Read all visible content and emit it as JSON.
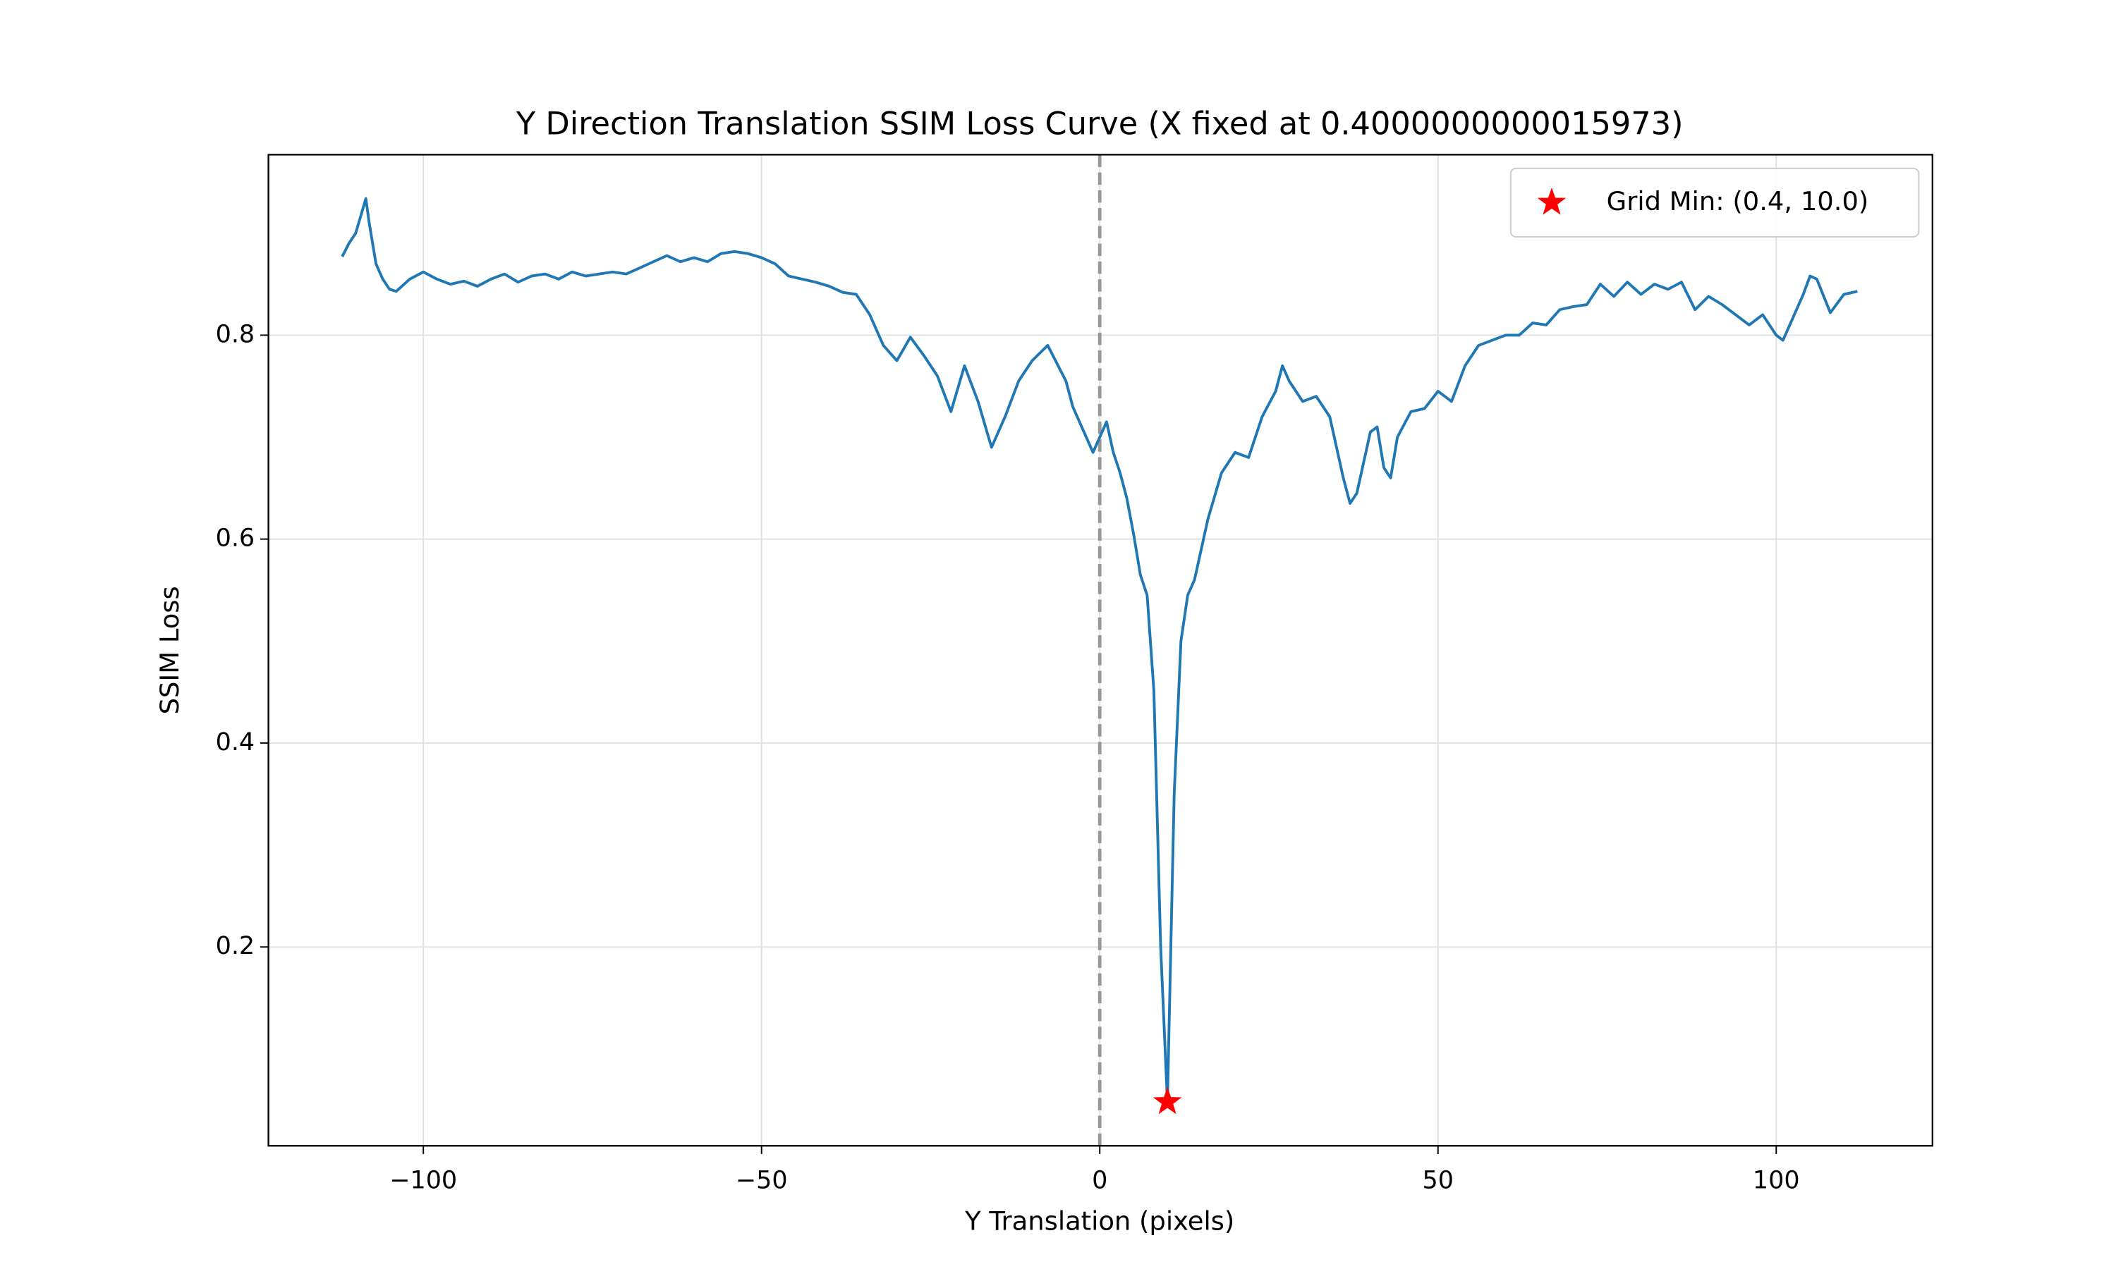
{
  "chart_data": {
    "type": "line",
    "title": "Y Direction Translation SSIM Loss Curve (X fixed at 0.4000000000015973)",
    "xlabel": "Y Translation (pixels)",
    "ylabel": "SSIM Loss",
    "xlim": [
      -122.9,
      123.1
    ],
    "ylim": [
      0.005,
      0.977
    ],
    "xticks": [
      {
        "value": -100,
        "label": "−100"
      },
      {
        "value": -50,
        "label": "−50"
      },
      0,
      50,
      100
    ],
    "yticks": [
      0.2,
      0.4,
      0.6,
      0.8
    ],
    "grid": true,
    "vline_x": 0,
    "vline_color": "#999999",
    "legend_position": "upper-right",
    "series": [
      {
        "color": "#1f77b4",
        "x": [
          -112,
          -111,
          -110,
          -108.5,
          -108,
          -107,
          -106,
          -105,
          -104,
          -102,
          -100,
          -98,
          -96,
          -94,
          -92,
          -90,
          -88,
          -86,
          -84,
          -82,
          -80,
          -78,
          -76,
          -74,
          -72,
          -70,
          -68,
          -66,
          -64,
          -62,
          -60,
          -58,
          -56,
          -54,
          -52,
          -50,
          -48,
          -46,
          -44,
          -42,
          -40,
          -38,
          -36,
          -34,
          -32,
          -30,
          -28,
          -26,
          -24,
          -22,
          -20,
          -18,
          -16,
          -14,
          -12,
          -10,
          -7.7,
          -5,
          -4,
          -2,
          -1,
          0,
          1,
          2,
          3,
          4,
          5,
          6,
          7,
          8,
          9,
          10,
          11,
          12,
          13,
          14,
          16,
          18,
          20,
          22,
          24,
          26,
          27,
          28,
          30,
          32,
          34,
          36,
          37,
          38,
          40,
          41,
          42,
          43,
          44,
          46,
          48,
          50,
          52,
          54,
          56,
          58,
          60,
          62,
          64,
          66,
          68,
          70,
          72,
          74,
          76,
          78,
          80,
          82,
          84,
          86,
          88,
          90,
          92,
          94,
          96,
          98,
          100,
          101,
          102,
          104,
          105,
          106,
          108,
          110,
          112
        ],
        "values": [
          0.877,
          0.89,
          0.9,
          0.934,
          0.91,
          0.87,
          0.855,
          0.845,
          0.843,
          0.855,
          0.862,
          0.855,
          0.85,
          0.853,
          0.848,
          0.855,
          0.86,
          0.852,
          0.858,
          0.86,
          0.855,
          0.862,
          0.858,
          0.86,
          0.862,
          0.86,
          0.866,
          0.872,
          0.878,
          0.872,
          0.876,
          0.872,
          0.88,
          0.882,
          0.88,
          0.876,
          0.87,
          0.858,
          0.855,
          0.852,
          0.848,
          0.842,
          0.84,
          0.82,
          0.79,
          0.775,
          0.798,
          0.78,
          0.76,
          0.725,
          0.77,
          0.735,
          0.69,
          0.72,
          0.755,
          0.775,
          0.79,
          0.755,
          0.73,
          0.7,
          0.685,
          0.7,
          0.715,
          0.685,
          0.665,
          0.64,
          0.605,
          0.565,
          0.545,
          0.451,
          0.2,
          0.048,
          0.35,
          0.5,
          0.545,
          0.56,
          0.62,
          0.665,
          0.685,
          0.68,
          0.72,
          0.745,
          0.77,
          0.755,
          0.735,
          0.74,
          0.72,
          0.66,
          0.635,
          0.645,
          0.705,
          0.71,
          0.67,
          0.66,
          0.7,
          0.725,
          0.728,
          0.745,
          0.735,
          0.77,
          0.79,
          0.795,
          0.8,
          0.8,
          0.812,
          0.81,
          0.825,
          0.828,
          0.83,
          0.85,
          0.838,
          0.852,
          0.84,
          0.85,
          0.845,
          0.852,
          0.825,
          0.838,
          0.83,
          0.82,
          0.81,
          0.82,
          0.8,
          0.795,
          0.81,
          0.84,
          0.858,
          0.855,
          0.822,
          0.84,
          0.843
        ]
      }
    ],
    "markers": [
      {
        "name": "Grid Min: (0.4, 10.0)",
        "x": 10,
        "y": 0.048,
        "color": "#ff0000"
      }
    ]
  }
}
